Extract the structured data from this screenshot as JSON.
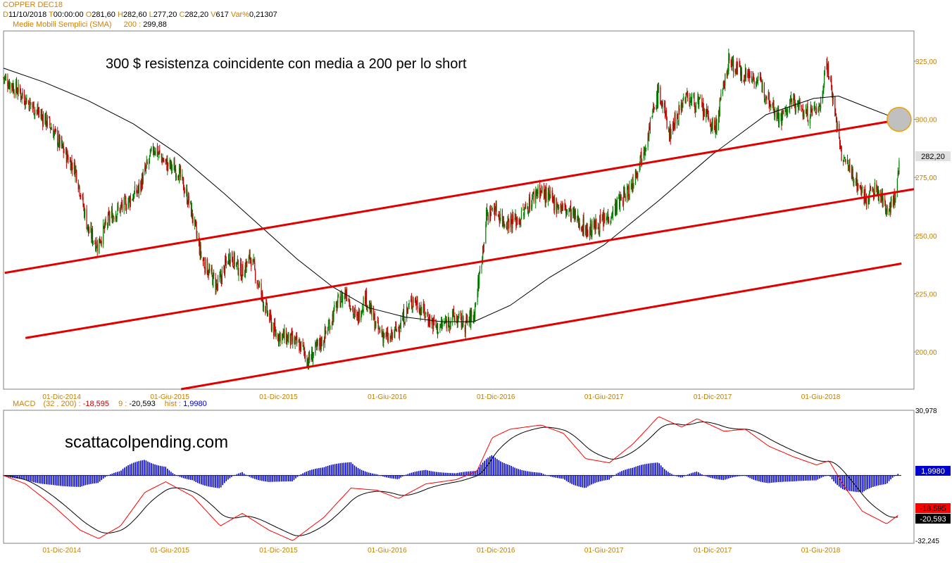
{
  "header": {
    "symbol": "COPPER DEC18",
    "d_label": "D",
    "d_value": "11/10/2018",
    "t_label": "T",
    "t_value": "00:00:00",
    "o_label": "O",
    "o_value": "281,60",
    "h_label": "H",
    "h_value": "282,60",
    "l_label": "L",
    "l_value": "277,20",
    "c_label": "C",
    "c_value": "282,20",
    "v_label": "V",
    "v_value": "617",
    "var_label": "Var%",
    "var_value": "0,21307",
    "sma_label": "Medie Mobili Semplici (SMA)",
    "sma_period": "200 :",
    "sma_value": "299,88"
  },
  "macd_header": {
    "label": "MACD",
    "params": "(32 , 200) :",
    "macd_value": "-18,595",
    "signal_period": "9 :",
    "signal_value": "-20,593",
    "hist_label": "hist :",
    "hist_value": "1,9980"
  },
  "annotations": {
    "main_text": "300 $ resistenza coincidente con media a 200 per lo short",
    "watermark": "scattacolpending.com"
  },
  "colors": {
    "up_candle": "#008000",
    "down_candle": "#c00000",
    "trendline": "#e00000",
    "sma": "#000000",
    "histogram": "#0000cc",
    "header_orange": "#d08000",
    "tick_label": "#c08000",
    "last_price_box": "#e0e0e0",
    "macd_box": "#ff0000",
    "signal_box": "#000000",
    "hist_box": "#0000cc",
    "circle_fill": "#c0c0c0",
    "circle_stroke": "#f0a000"
  },
  "chart_data": [
    {
      "type": "candlestick",
      "title": "COPPER DEC18",
      "y_range": [
        184,
        338
      ],
      "y_ticks": [
        "325,00",
        "300,00",
        "275,00",
        "250,00",
        "225,00",
        "200,00"
      ],
      "y_tick_values": [
        325,
        300,
        275,
        250,
        225,
        200
      ],
      "x_tick_labels": [
        "01-Dic-2014",
        "01-Giu-2015",
        "01-Dic-2015",
        "01-Giu-2016",
        "01-Dic-2016",
        "01-Giu-2017",
        "01-Dic-2017",
        "01-Giu-2018"
      ],
      "x_tick_dates": [
        "2014-12-01",
        "2015-06-01",
        "2015-12-01",
        "2016-06-01",
        "2016-12-01",
        "2017-06-01",
        "2017-12-01",
        "2018-06-01"
      ],
      "x_range": [
        "2014-08-25",
        "2018-11-05"
      ],
      "last_price": "282,20",
      "close_path": [
        {
          "date": "2014-08-25",
          "close": 318
        },
        {
          "date": "2014-09-20",
          "close": 312
        },
        {
          "date": "2014-10-15",
          "close": 305
        },
        {
          "date": "2014-11-10",
          "close": 298
        },
        {
          "date": "2014-12-05",
          "close": 286
        },
        {
          "date": "2014-12-25",
          "close": 278
        },
        {
          "date": "2015-01-15",
          "close": 252
        },
        {
          "date": "2015-01-30",
          "close": 246
        },
        {
          "date": "2015-02-20",
          "close": 258
        },
        {
          "date": "2015-03-20",
          "close": 264
        },
        {
          "date": "2015-04-10",
          "close": 270
        },
        {
          "date": "2015-05-05",
          "close": 288
        },
        {
          "date": "2015-05-25",
          "close": 281
        },
        {
          "date": "2015-06-15",
          "close": 278
        },
        {
          "date": "2015-07-05",
          "close": 263
        },
        {
          "date": "2015-07-25",
          "close": 240
        },
        {
          "date": "2015-08-20",
          "close": 228
        },
        {
          "date": "2015-09-10",
          "close": 242
        },
        {
          "date": "2015-09-30",
          "close": 234
        },
        {
          "date": "2015-10-15",
          "close": 241
        },
        {
          "date": "2015-11-05",
          "close": 222
        },
        {
          "date": "2015-11-25",
          "close": 208
        },
        {
          "date": "2015-12-15",
          "close": 206
        },
        {
          "date": "2016-01-10",
          "close": 202
        },
        {
          "date": "2016-01-20",
          "close": 196
        },
        {
          "date": "2016-02-15",
          "close": 206
        },
        {
          "date": "2016-03-10",
          "close": 221
        },
        {
          "date": "2016-03-25",
          "close": 226
        },
        {
          "date": "2016-04-10",
          "close": 213
        },
        {
          "date": "2016-04-25",
          "close": 224
        },
        {
          "date": "2016-05-15",
          "close": 210
        },
        {
          "date": "2016-06-05",
          "close": 205
        },
        {
          "date": "2016-06-25",
          "close": 213
        },
        {
          "date": "2016-07-15",
          "close": 223
        },
        {
          "date": "2016-08-05",
          "close": 216
        },
        {
          "date": "2016-08-25",
          "close": 210
        },
        {
          "date": "2016-09-20",
          "close": 215
        },
        {
          "date": "2016-10-10",
          "close": 212
        },
        {
          "date": "2016-10-25",
          "close": 216
        },
        {
          "date": "2016-11-05",
          "close": 236
        },
        {
          "date": "2016-11-15",
          "close": 258
        },
        {
          "date": "2016-11-28",
          "close": 262
        },
        {
          "date": "2016-12-15",
          "close": 256
        },
        {
          "date": "2017-01-10",
          "close": 257
        },
        {
          "date": "2017-02-10",
          "close": 270
        },
        {
          "date": "2017-03-10",
          "close": 264
        },
        {
          "date": "2017-04-05",
          "close": 260
        },
        {
          "date": "2017-05-05",
          "close": 252
        },
        {
          "date": "2017-06-05",
          "close": 257
        },
        {
          "date": "2017-06-25",
          "close": 264
        },
        {
          "date": "2017-07-15",
          "close": 270
        },
        {
          "date": "2017-08-10",
          "close": 290
        },
        {
          "date": "2017-09-01",
          "close": 312
        },
        {
          "date": "2017-09-20",
          "close": 294
        },
        {
          "date": "2017-10-15",
          "close": 310
        },
        {
          "date": "2017-11-10",
          "close": 306
        },
        {
          "date": "2017-12-05",
          "close": 295
        },
        {
          "date": "2017-12-28",
          "close": 325
        },
        {
          "date": "2018-01-20",
          "close": 320
        },
        {
          "date": "2018-02-10",
          "close": 318
        },
        {
          "date": "2018-03-05",
          "close": 310
        },
        {
          "date": "2018-03-25",
          "close": 300
        },
        {
          "date": "2018-04-15",
          "close": 308
        },
        {
          "date": "2018-05-10",
          "close": 302
        },
        {
          "date": "2018-06-01",
          "close": 306
        },
        {
          "date": "2018-06-10",
          "close": 326
        },
        {
          "date": "2018-06-20",
          "close": 312
        },
        {
          "date": "2018-07-05",
          "close": 285
        },
        {
          "date": "2018-07-25",
          "close": 276
        },
        {
          "date": "2018-08-15",
          "close": 266
        },
        {
          "date": "2018-09-01",
          "close": 270
        },
        {
          "date": "2018-09-20",
          "close": 262
        },
        {
          "date": "2018-10-05",
          "close": 266
        },
        {
          "date": "2018-10-11",
          "close": 282.2
        }
      ],
      "sma_200": [
        {
          "date": "2014-08-25",
          "value": 322
        },
        {
          "date": "2014-11-01",
          "value": 316
        },
        {
          "date": "2015-01-15",
          "value": 308
        },
        {
          "date": "2015-04-01",
          "value": 298
        },
        {
          "date": "2015-06-15",
          "value": 285
        },
        {
          "date": "2015-09-01",
          "value": 268
        },
        {
          "date": "2015-11-01",
          "value": 254
        },
        {
          "date": "2016-01-01",
          "value": 240
        },
        {
          "date": "2016-03-01",
          "value": 228
        },
        {
          "date": "2016-05-01",
          "value": 219
        },
        {
          "date": "2016-07-01",
          "value": 215
        },
        {
          "date": "2016-09-01",
          "value": 213
        },
        {
          "date": "2016-10-25",
          "value": 213
        },
        {
          "date": "2016-12-25",
          "value": 220
        },
        {
          "date": "2017-03-01",
          "value": 232
        },
        {
          "date": "2017-06-01",
          "value": 246
        },
        {
          "date": "2017-09-01",
          "value": 265
        },
        {
          "date": "2017-12-01",
          "value": 285
        },
        {
          "date": "2018-03-01",
          "value": 302
        },
        {
          "date": "2018-05-20",
          "value": 309
        },
        {
          "date": "2018-07-01",
          "value": 310
        },
        {
          "date": "2018-08-20",
          "value": 305
        },
        {
          "date": "2018-10-11",
          "value": 299.88
        }
      ],
      "trendlines": [
        {
          "name": "upper",
          "start": {
            "date": "2014-08-27",
            "value": 234
          },
          "end": {
            "date": "2018-10-15",
            "value": 300
          }
        },
        {
          "name": "middle",
          "start": {
            "date": "2014-10-01",
            "value": 206
          },
          "end": {
            "date": "2018-11-05",
            "value": 270
          }
        },
        {
          "name": "lower",
          "start": {
            "date": "2015-06-20",
            "value": 184
          },
          "end": {
            "date": "2018-10-15",
            "value": 238
          }
        }
      ],
      "highlight_circle": {
        "date": "2018-10-11",
        "value": 300
      },
      "annotation": "300 $ resistenza coincidente con media a 200 per lo short"
    },
    {
      "type": "line",
      "title": "MACD",
      "y_range": [
        -32.245,
        30.978
      ],
      "y_ticks": [
        "30,978",
        "-32,245"
      ],
      "y_tick_values": [
        30.978,
        -32.245
      ],
      "x_tick_labels": [
        "01-Dic-2014",
        "01-Giu-2015",
        "01-Dic-2015",
        "01-Giu-2016",
        "01-Dic-2016",
        "01-Giu-2017",
        "01-Dic-2017",
        "01-Giu-2018"
      ],
      "series": [
        {
          "name": "MACD",
          "params": "(32 , 200)",
          "last_value": "-18,595",
          "last": -18.595
        },
        {
          "name": "9",
          "last_value": "-20,593",
          "last": -20.593
        },
        {
          "name": "hist",
          "last_value": "1,9980",
          "last": 1.998
        }
      ],
      "macd_path": [
        {
          "date": "2014-08-25",
          "value": 0
        },
        {
          "date": "2014-10-01",
          "value": -4
        },
        {
          "date": "2014-11-15",
          "value": -14
        },
        {
          "date": "2015-01-01",
          "value": -26
        },
        {
          "date": "2015-02-01",
          "value": -30
        },
        {
          "date": "2015-03-10",
          "value": -24
        },
        {
          "date": "2015-04-20",
          "value": -8
        },
        {
          "date": "2015-05-25",
          "value": -3
        },
        {
          "date": "2015-07-10",
          "value": -10
        },
        {
          "date": "2015-08-25",
          "value": -24
        },
        {
          "date": "2015-10-01",
          "value": -18
        },
        {
          "date": "2015-11-15",
          "value": -26
        },
        {
          "date": "2015-12-25",
          "value": -31
        },
        {
          "date": "2016-02-15",
          "value": -20
        },
        {
          "date": "2016-04-01",
          "value": -6
        },
        {
          "date": "2016-05-15",
          "value": -7
        },
        {
          "date": "2016-06-20",
          "value": -11
        },
        {
          "date": "2016-08-05",
          "value": -4
        },
        {
          "date": "2016-09-25",
          "value": -2
        },
        {
          "date": "2016-10-30",
          "value": 2
        },
        {
          "date": "2016-11-25",
          "value": 18
        },
        {
          "date": "2016-12-25",
          "value": 22
        },
        {
          "date": "2017-02-15",
          "value": 24
        },
        {
          "date": "2017-03-25",
          "value": 20
        },
        {
          "date": "2017-05-01",
          "value": 8
        },
        {
          "date": "2017-06-10",
          "value": 6
        },
        {
          "date": "2017-07-20",
          "value": 15
        },
        {
          "date": "2017-09-01",
          "value": 28
        },
        {
          "date": "2017-10-10",
          "value": 23
        },
        {
          "date": "2017-11-05",
          "value": 27
        },
        {
          "date": "2017-12-20",
          "value": 21
        },
        {
          "date": "2018-01-25",
          "value": 22
        },
        {
          "date": "2018-03-05",
          "value": 14
        },
        {
          "date": "2018-04-15",
          "value": 9
        },
        {
          "date": "2018-05-25",
          "value": 5
        },
        {
          "date": "2018-06-15",
          "value": 7
        },
        {
          "date": "2018-07-10",
          "value": -5
        },
        {
          "date": "2018-08-10",
          "value": -17
        },
        {
          "date": "2018-09-20",
          "value": -23
        },
        {
          "date": "2018-10-11",
          "value": -18.595
        }
      ]
    }
  ]
}
